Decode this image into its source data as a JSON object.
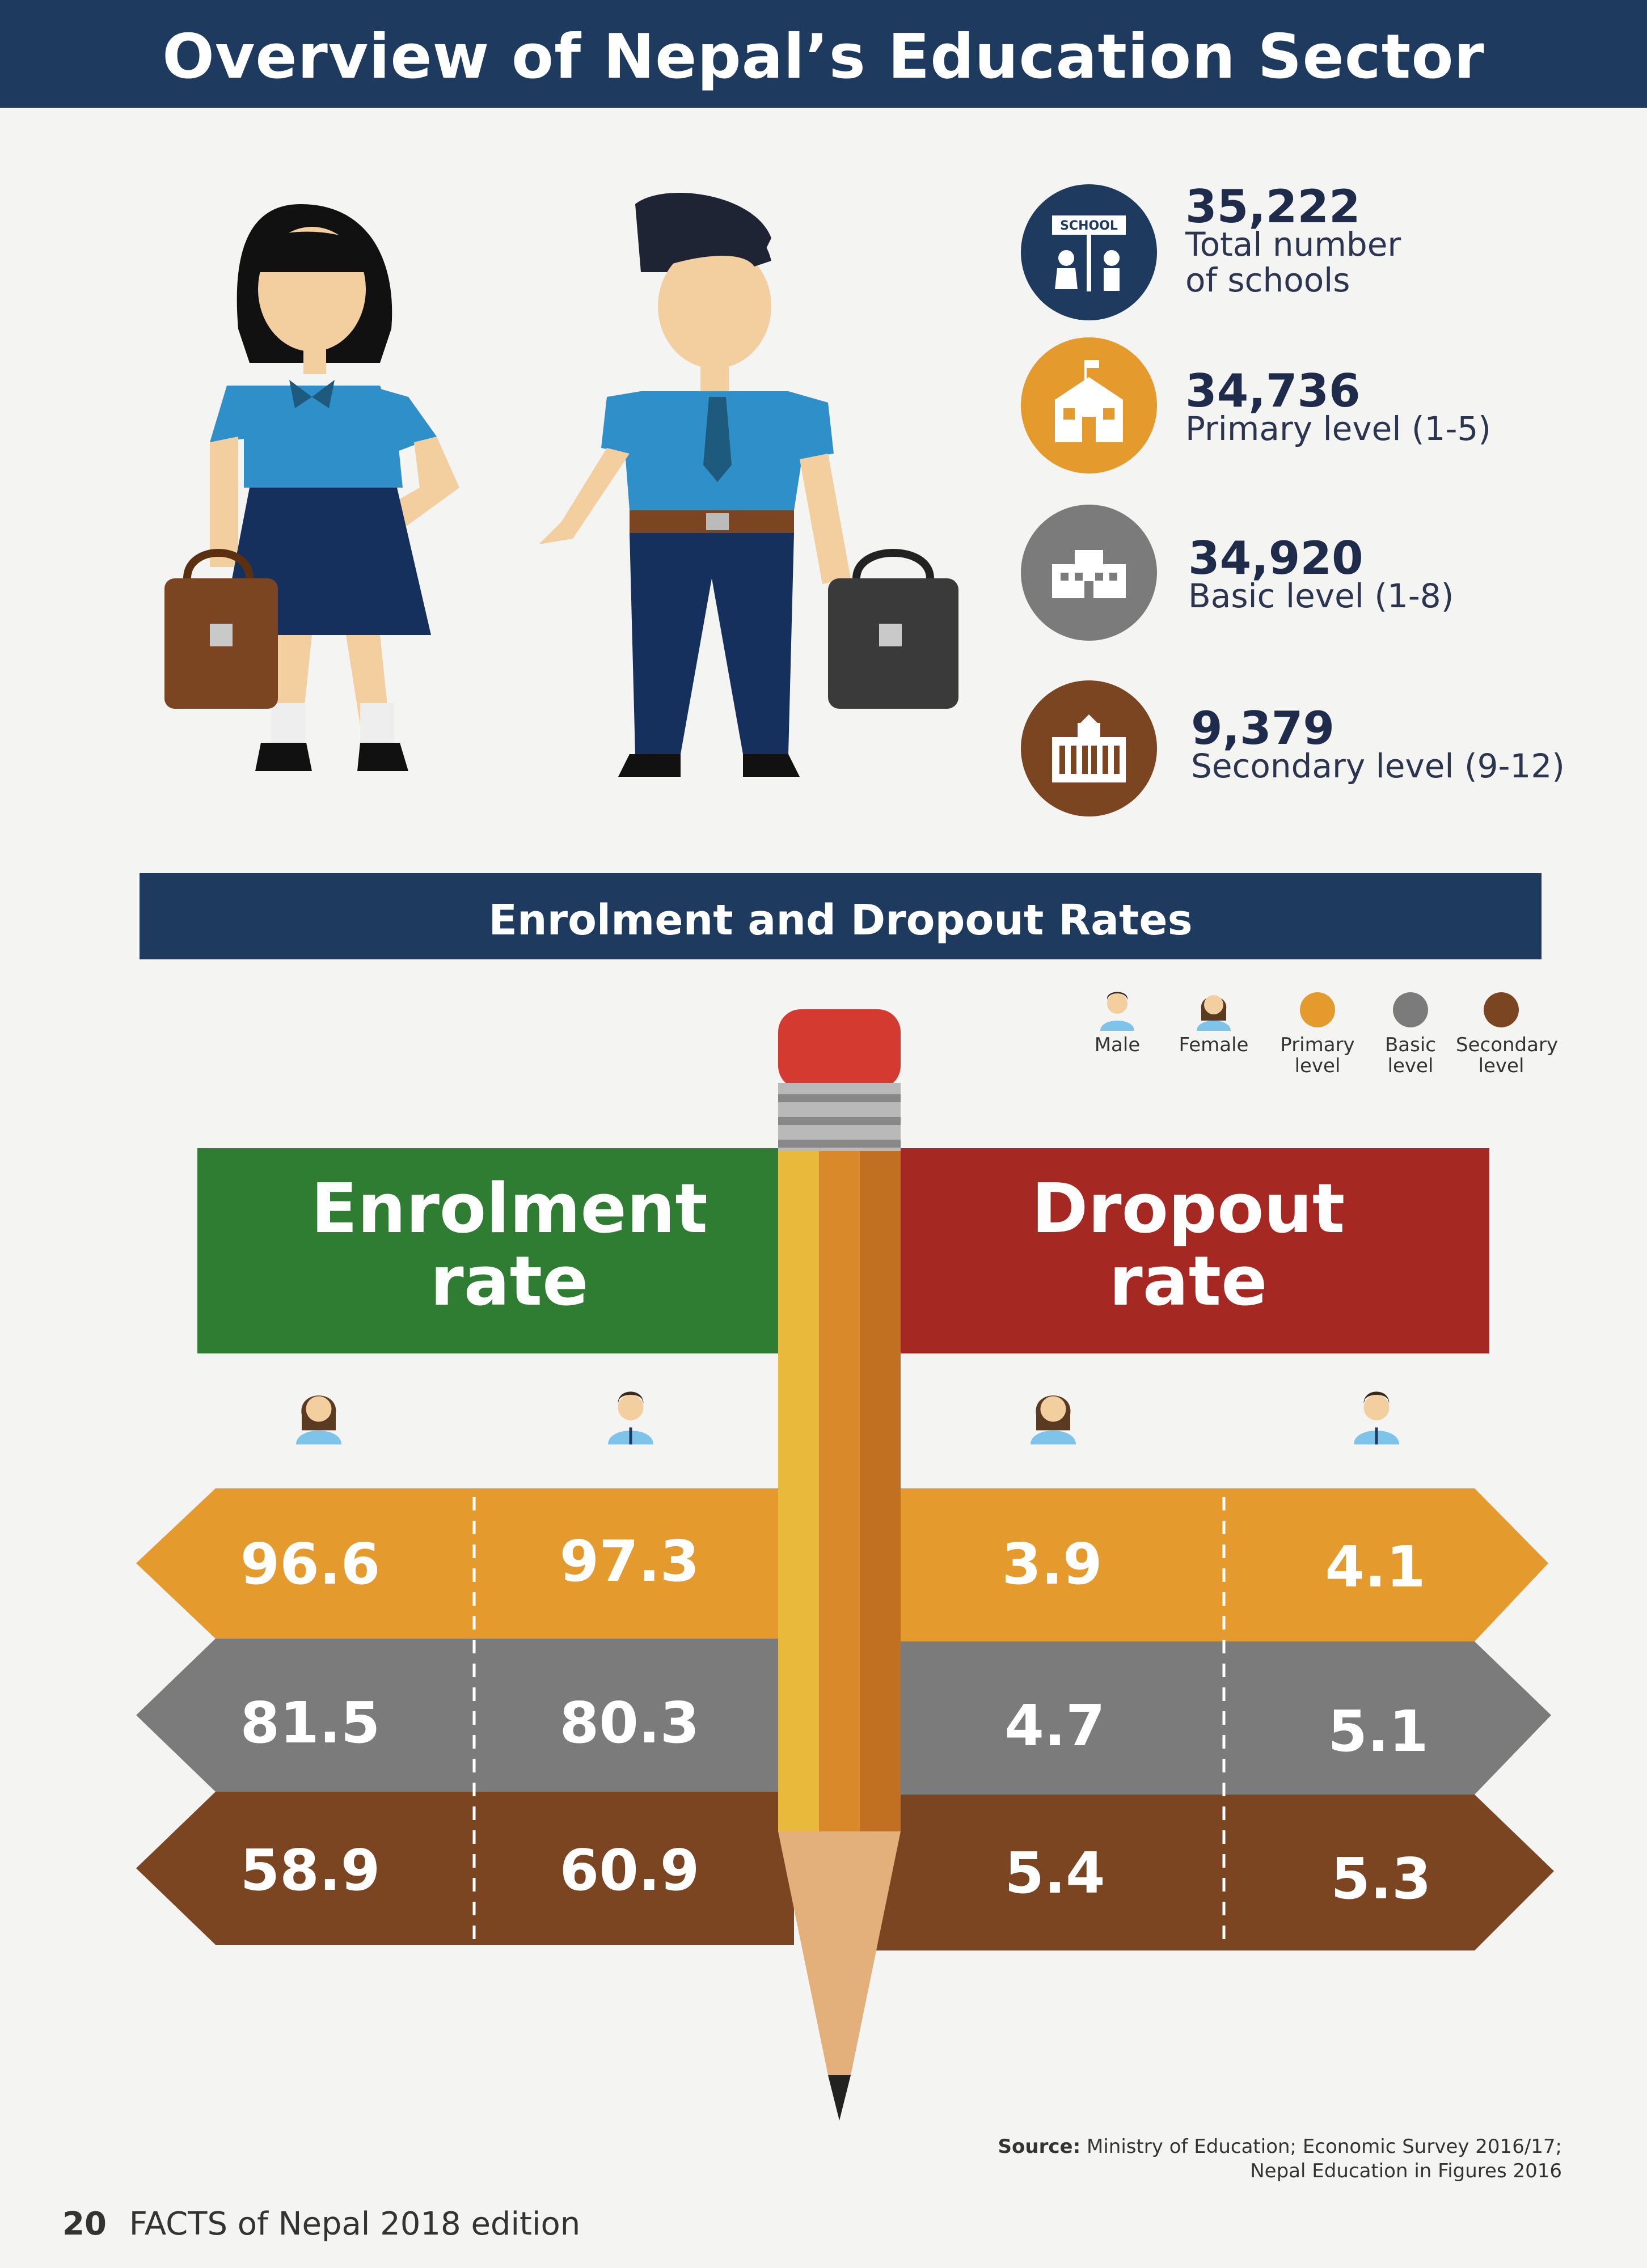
{
  "header": {
    "title": "Overview of Nepal’s Education Sector"
  },
  "stats": [
    {
      "number": "35,222",
      "label_line1": "Total number",
      "label_line2": "of schools",
      "icon": "school-sign-icon",
      "color": "#1e3a5f",
      "icon_text": "SCHOOL"
    },
    {
      "number": "34,736",
      "label_line1": "Primary level (1-5)",
      "icon": "primary-school-building-icon",
      "color": "#e49a2c"
    },
    {
      "number": "34,920",
      "label_line1": "Basic level (1-8)",
      "icon": "basic-school-building-icon",
      "color": "#7b7b7b"
    },
    {
      "number": "9,379",
      "label_line1": "Secondary level (9-12)",
      "icon": "secondary-school-building-icon",
      "color": "#7a4520"
    }
  ],
  "section": {
    "title": "Enrolment and Dropout Rates"
  },
  "legend": {
    "male": "Male",
    "female": "Female",
    "primary_line1": "Primary",
    "primary_line2": "level",
    "basic_line1": "Basic",
    "basic_line2": "level",
    "secondary_line1": "Secondary",
    "secondary_line2": "level"
  },
  "enrolment": {
    "title_line1": "Enrolment",
    "title_line2": "rate",
    "color": "#2e7d32",
    "rows": [
      {
        "level": "primary",
        "female": "96.6",
        "male": "97.3"
      },
      {
        "level": "basic",
        "female": "81.5",
        "male": "80.3"
      },
      {
        "level": "secondary",
        "female": "58.9",
        "male": "60.9"
      }
    ]
  },
  "dropout": {
    "title_line1": "Dropout",
    "title_line2": "rate",
    "color": "#a52823",
    "rows": [
      {
        "level": "primary",
        "female": "3.9",
        "male": "4.1"
      },
      {
        "level": "basic",
        "female": "4.7",
        "male": "5.1"
      },
      {
        "level": "secondary",
        "female": "5.4",
        "male": "5.3"
      }
    ]
  },
  "level_colors": {
    "primary": "#e49a2c",
    "basic": "#7b7b7b",
    "secondary": "#7a4520"
  },
  "source": {
    "label": "Source:",
    "text_line1": "Ministry of Education; Economic Survey 2016/17;",
    "text_line2": "Nepal Education in Figures 2016"
  },
  "footer": {
    "page_number": "20",
    "publication": "FACTS of Nepal 2018 edition"
  }
}
